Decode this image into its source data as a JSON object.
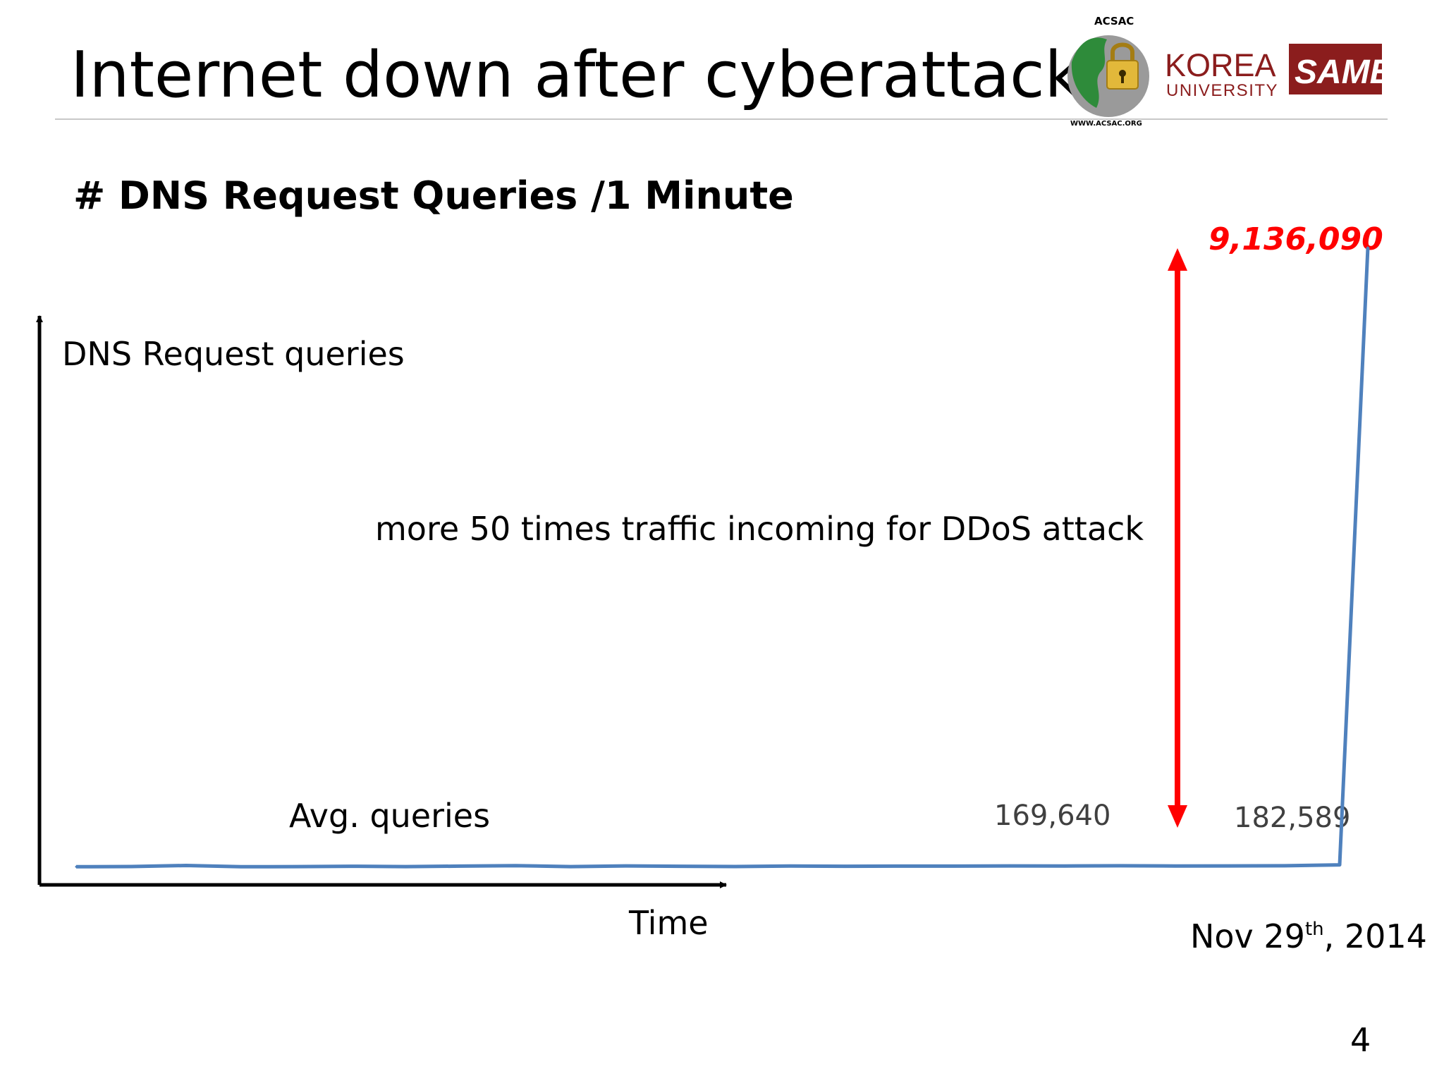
{
  "slide": {
    "title": "Internet down after cyberattack",
    "page_number": "4"
  },
  "logos": {
    "acsac_text": "ACSAC",
    "acsac_url": "WWW.ACSAC.ORG",
    "korea": "KOREA",
    "university": "UNIVERSITY",
    "same": "SAME"
  },
  "chart_data": {
    "type": "line",
    "title": "# DNS Request Queries /1 Minute",
    "ylabel": "DNS Request queries",
    "xlabel": "Time",
    "date_label": {
      "main": "Nov 29",
      "sup": "th",
      "rest": ", 2014"
    },
    "baseline_label": "Avg. queries",
    "annotation": "more 50 times traffic incoming for DDoS attack",
    "peak_label": "9,136,090",
    "data_labels": [
      "169,640",
      "182,589"
    ],
    "ylim": [
      0,
      9300000
    ],
    "series": [
      {
        "x": [
          0,
          1,
          2,
          3,
          4,
          5,
          6,
          7,
          8,
          9,
          10,
          11,
          12,
          13,
          14,
          15,
          16,
          17,
          18,
          19,
          20,
          21,
          22,
          23,
          24
        ],
        "values": [
          160000,
          163000,
          175000,
          160000,
          162000,
          166000,
          162000,
          168000,
          173000,
          162000,
          170000,
          166000,
          163000,
          169000,
          166000,
          168000,
          168000,
          170000,
          169000,
          172000,
          169640,
          170000,
          172000,
          182589,
          9136090
        ]
      }
    ],
    "colors": {
      "line": "#4f81bd",
      "arrow": "#ff0000",
      "peak_label": "#ff0000",
      "data_label": "#404040",
      "axis": "#000000"
    }
  }
}
